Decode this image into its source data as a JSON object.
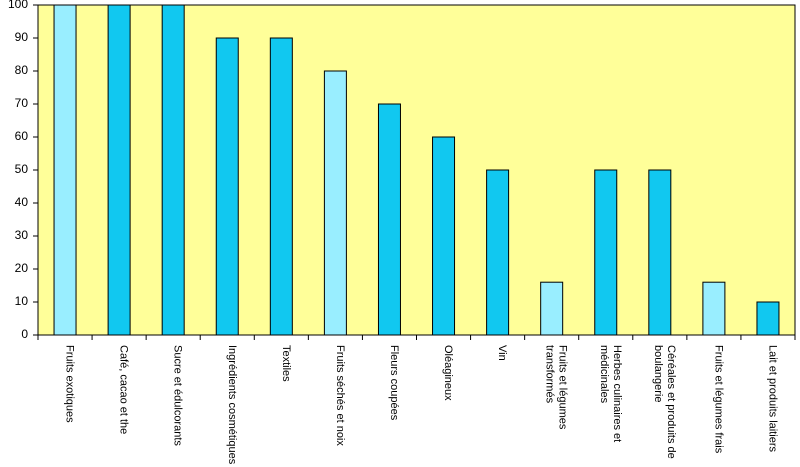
{
  "chart_data": {
    "type": "bar",
    "categories": [
      "Fruits exotiques",
      "Café, cacao et the",
      "Sucre et édulcorants",
      "Ingrédients cosmétiques",
      "Textiles",
      "Fruits séchés et noix",
      "Fleurs coupées",
      "Oléagineux",
      "Vin",
      "Fruits et légumes transformés",
      "Herbes culinaires et médicinales",
      "Céréales et produits de boulangerie",
      "Fruits et légumes frais",
      "Lait et produits laitiers"
    ],
    "values": [
      100,
      100,
      100,
      90,
      90,
      80,
      70,
      60,
      50,
      16,
      50,
      50,
      16,
      10
    ],
    "colors": [
      "#99eeff",
      "#11c8f0",
      "#11c8f0",
      "#11c8f0",
      "#11c8f0",
      "#99eeff",
      "#11c8f0",
      "#11c8f0",
      "#11c8f0",
      "#99eeff",
      "#11c8f0",
      "#11c8f0",
      "#99eeff",
      "#11c8f0"
    ],
    "background": "#ffff99",
    "ylim": [
      0,
      100
    ],
    "yticks": [
      0,
      10,
      20,
      30,
      40,
      50,
      60,
      70,
      80,
      90,
      100
    ],
    "grid": false
  }
}
